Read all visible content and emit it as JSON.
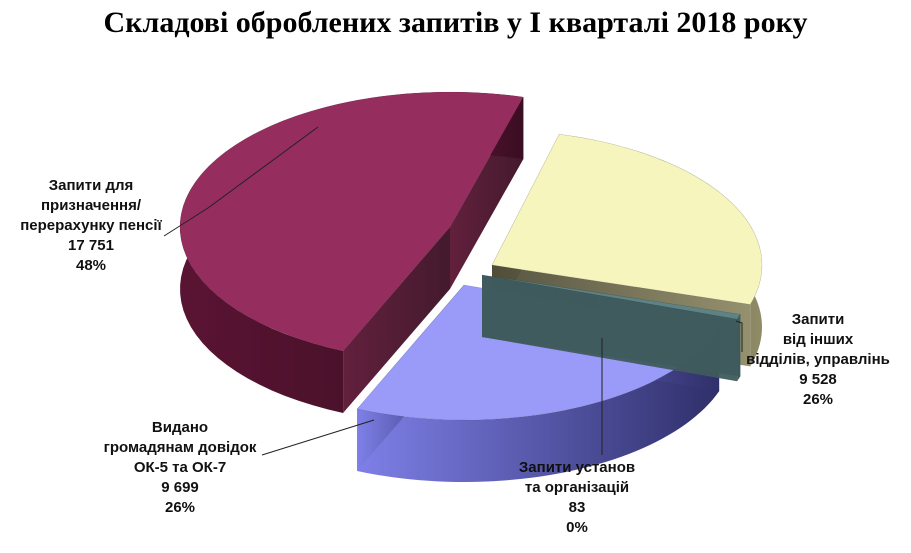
{
  "chart_data": {
    "type": "pie",
    "title": "Складові оброблених запитів у I кварталі 2018 року",
    "slices": [
      {
        "label_lines": [
          "Запити для",
          "призначення/",
          "перерахунку пенсії"
        ],
        "value": 17751,
        "value_text": "17 751",
        "percent": 48,
        "percent_text": "48%",
        "color": "#952E5F"
      },
      {
        "label_lines": [
          "Запити",
          "від інших",
          "відділів, управлінь"
        ],
        "value": 9528,
        "value_text": "9 528",
        "percent": 26,
        "percent_text": "26%",
        "color": "#F6F5BD"
      },
      {
        "label_lines": [
          "Запити установ",
          "та організацій"
        ],
        "value": 83,
        "value_text": "83",
        "percent": 0,
        "percent_text": "0%",
        "color": "#5E8386"
      },
      {
        "label_lines": [
          "Видано",
          "громадянам довідок",
          "ОК-5 та ОК-7"
        ],
        "value": 9699,
        "value_text": "9 699",
        "percent": 26,
        "percent_text": "26%",
        "color": "#9A9BF8"
      }
    ],
    "legend": "none",
    "style": "exploded-3d"
  }
}
